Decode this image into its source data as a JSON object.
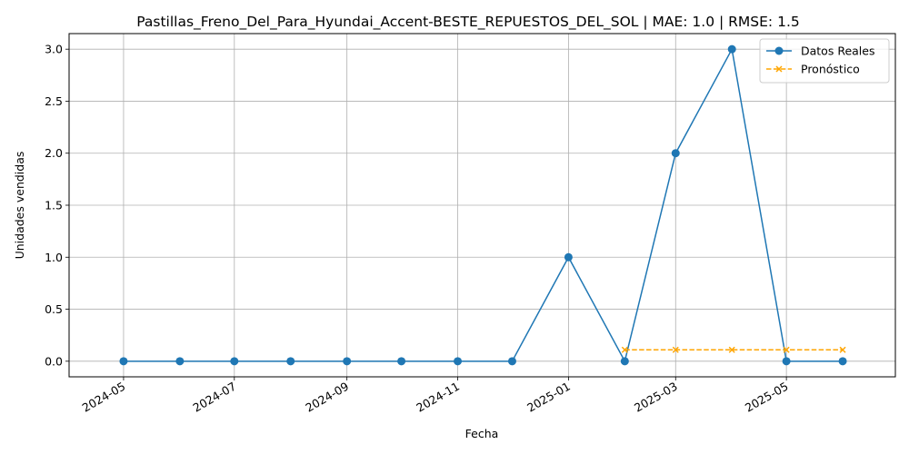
{
  "chart_data": {
    "type": "line",
    "title": "Pastillas_Freno_Del_Para_Hyundai_Accent-BESTE_REPUESTOS_DEL_SOL | MAE: 1.0 | RMSE: 1.5",
    "xlabel": "Fecha",
    "ylabel": "Unidades vendidas",
    "x_ticks": [
      "2024-05",
      "2024-07",
      "2024-09",
      "2024-11",
      "2025-01",
      "2025-03",
      "2025-05"
    ],
    "y_ticks": [
      "0.0",
      "0.5",
      "1.0",
      "1.5",
      "2.0",
      "2.5",
      "3.0"
    ],
    "ylim": [
      -0.15,
      3.15
    ],
    "xlim": [
      "2024-04-01",
      "2025-06-30"
    ],
    "grid": true,
    "legend_position": "upper right",
    "series": [
      {
        "name": "Datos Reales",
        "color": "#1f77b4",
        "line_style": "solid",
        "marker": "circle",
        "points": [
          {
            "x": "2024-05-01",
            "y": 0
          },
          {
            "x": "2024-06-01",
            "y": 0
          },
          {
            "x": "2024-07-01",
            "y": 0
          },
          {
            "x": "2024-08-01",
            "y": 0
          },
          {
            "x": "2024-09-01",
            "y": 0
          },
          {
            "x": "2024-10-01",
            "y": 0
          },
          {
            "x": "2024-11-01",
            "y": 0
          },
          {
            "x": "2024-12-01",
            "y": 0
          },
          {
            "x": "2025-01-01",
            "y": 1
          },
          {
            "x": "2025-02-01",
            "y": 0
          },
          {
            "x": "2025-03-01",
            "y": 2
          },
          {
            "x": "2025-04-01",
            "y": 3
          },
          {
            "x": "2025-05-01",
            "y": 0
          },
          {
            "x": "2025-06-01",
            "y": 0
          }
        ]
      },
      {
        "name": "Pronóstico",
        "color": "#ffa500",
        "line_style": "dashed",
        "marker": "x",
        "points": [
          {
            "x": "2025-02-01",
            "y": 0.11
          },
          {
            "x": "2025-03-01",
            "y": 0.11
          },
          {
            "x": "2025-04-01",
            "y": 0.11
          },
          {
            "x": "2025-05-01",
            "y": 0.11
          },
          {
            "x": "2025-06-01",
            "y": 0.11
          }
        ]
      }
    ]
  }
}
